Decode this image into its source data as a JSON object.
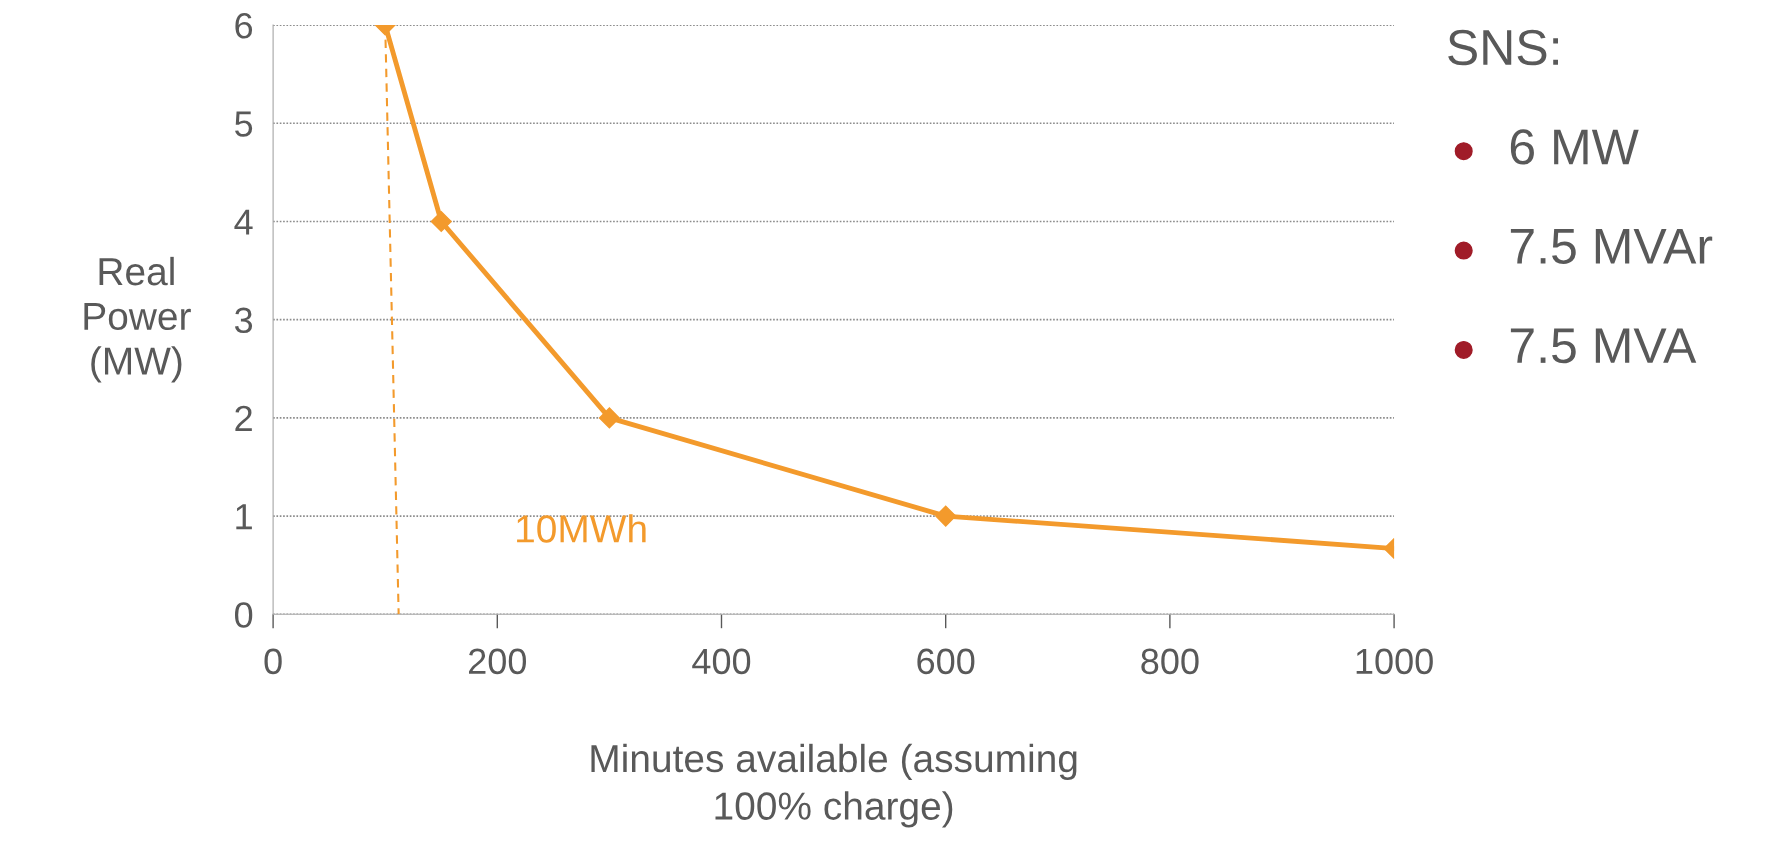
{
  "chart_data": {
    "type": "line",
    "xlabel": "Minutes available (assuming\n100% charge)",
    "ylabel": "Real\nPower\n(MW)",
    "series": [
      {
        "color": "#f39a2c",
        "x": [
          100,
          150,
          300,
          600,
          1000
        ],
        "values": [
          6,
          4,
          2,
          1,
          0.67
        ],
        "marker": "diamond",
        "line_style": "solid"
      },
      {
        "type": "line",
        "color": "#f39a2c",
        "x": [
          100,
          112
        ],
        "values": [
          6,
          0
        ],
        "marker": "none",
        "line_style": "dashed"
      }
    ],
    "annotations": [
      "10MWh",
      "SNS:",
      "6 MW",
      "7.5 MVAr",
      "7.5 MVA"
    ],
    "xlim": [
      0,
      1000
    ],
    "xticks": [
      0,
      200,
      400,
      600,
      800,
      1000
    ],
    "ylim": [
      0,
      6
    ],
    "yticks": [
      0,
      1,
      2,
      3,
      4,
      5,
      6
    ],
    "grid": "y",
    "legend": false
  }
}
